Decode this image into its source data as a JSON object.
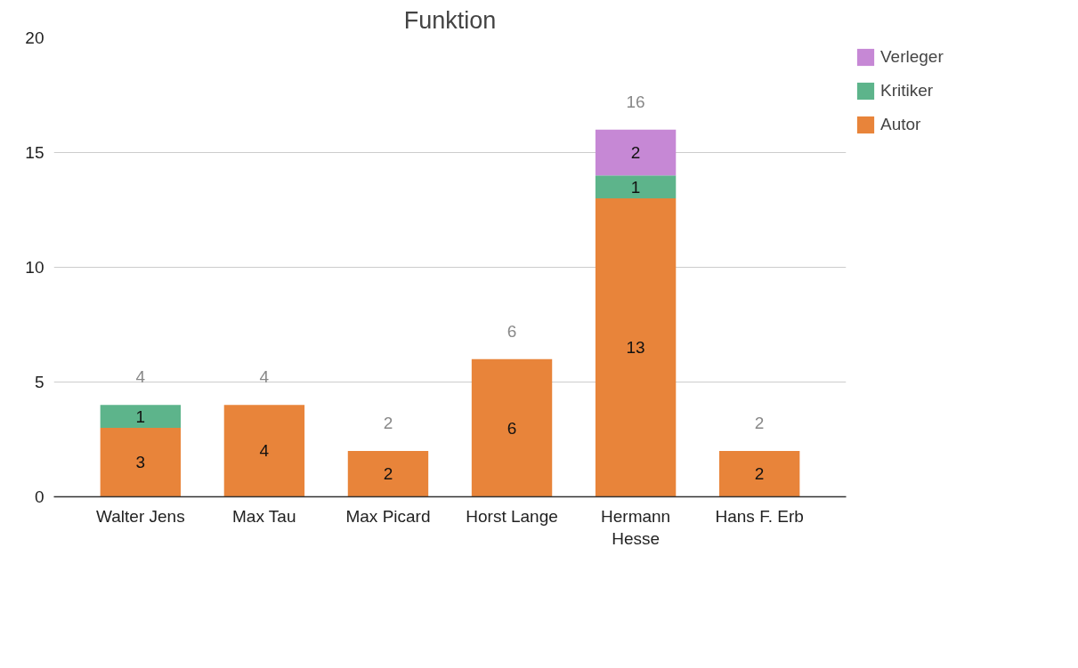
{
  "chart_data": {
    "type": "bar",
    "title": "Funktion",
    "stacked": true,
    "categories": [
      "Walter Jens",
      "Max Tau",
      "Max Picard",
      "Horst Lange",
      "Hermann Hesse",
      "Hans F. Erb"
    ],
    "series": [
      {
        "name": "Autor",
        "color": "#e8843a",
        "values": [
          3,
          4,
          2,
          6,
          13,
          2
        ]
      },
      {
        "name": "Kritiker",
        "color": "#5db48b",
        "values": [
          1,
          null,
          null,
          null,
          1,
          null
        ]
      },
      {
        "name": "Verleger",
        "color": "#c688d5",
        "values": [
          null,
          null,
          null,
          null,
          2,
          null
        ]
      }
    ],
    "totals": [
      "4",
      "4",
      "2",
      "6",
      "16",
      "2"
    ],
    "data_labels": true,
    "ylim": [
      0,
      20
    ],
    "yticks": [
      0,
      5,
      10,
      15,
      20
    ],
    "grid": "y",
    "legend": "top right"
  }
}
